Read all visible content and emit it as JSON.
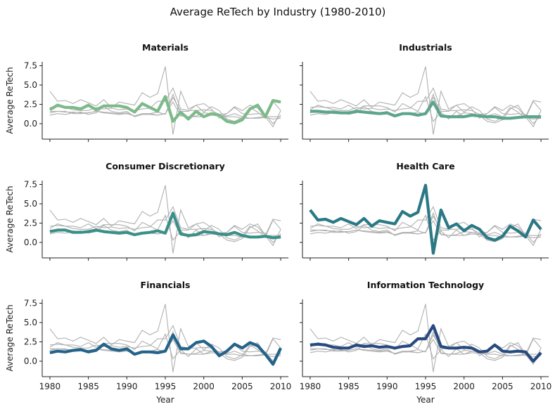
{
  "chart_data": {
    "type": "line",
    "title": "Average ReTech by Industry (1980-2010)",
    "xlabel": "Year",
    "ylabel": "Average ReTech",
    "xlim": [
      1979,
      2011
    ],
    "ylim": [
      -2,
      8
    ],
    "xticks": [
      1980,
      1985,
      1990,
      1995,
      2000,
      2005,
      2010
    ],
    "yticks": [
      0.0,
      2.5,
      5.0,
      7.5
    ],
    "ytick_labels": [
      "0.0",
      "2.5",
      "5.0",
      "7.5"
    ],
    "background_color": "#b0b0b0",
    "x": [
      1980,
      1981,
      1982,
      1983,
      1984,
      1985,
      1986,
      1987,
      1988,
      1989,
      1990,
      1991,
      1992,
      1993,
      1994,
      1995,
      1996,
      1997,
      1998,
      1999,
      2000,
      2001,
      2002,
      2003,
      2004,
      2005,
      2006,
      2007,
      2008,
      2009,
      2010
    ],
    "series": [
      {
        "name": "Materials",
        "color": "#7dba8a",
        "values": [
          1.8,
          2.4,
          2.1,
          2.1,
          1.9,
          2.4,
          1.8,
          2.3,
          2.3,
          2.3,
          2.1,
          1.5,
          2.6,
          2.1,
          1.6,
          3.5,
          0.3,
          1.5,
          0.6,
          1.6,
          0.9,
          1.3,
          1.1,
          0.3,
          0.1,
          0.5,
          1.9,
          2.4,
          0.9,
          3.0,
          2.8
        ]
      },
      {
        "name": "Industrials",
        "color": "#5ba58c",
        "values": [
          1.6,
          1.6,
          1.5,
          1.5,
          1.4,
          1.4,
          1.6,
          1.5,
          1.4,
          1.3,
          1.4,
          1.0,
          1.3,
          1.3,
          1.1,
          1.3,
          2.8,
          1.0,
          0.9,
          0.9,
          0.9,
          1.1,
          1.0,
          0.9,
          0.9,
          0.7,
          0.7,
          0.8,
          0.9,
          0.9,
          0.9
        ]
      },
      {
        "name": "Consumer Discretionary",
        "color": "#3a9089",
        "values": [
          1.4,
          1.6,
          1.6,
          1.3,
          1.3,
          1.4,
          1.6,
          1.4,
          1.3,
          1.2,
          1.3,
          1.0,
          1.2,
          1.3,
          1.5,
          1.2,
          3.8,
          1.1,
          0.9,
          1.0,
          1.4,
          1.3,
          1.1,
          1.0,
          1.3,
          0.9,
          0.7,
          0.7,
          0.8,
          0.6,
          0.7
        ]
      },
      {
        "name": "Health Care",
        "color": "#2a7985",
        "values": [
          4.2,
          2.9,
          3.0,
          2.6,
          3.1,
          2.7,
          2.3,
          3.1,
          2.1,
          2.8,
          2.6,
          2.4,
          4.0,
          3.4,
          3.9,
          7.4,
          -1.4,
          4.2,
          1.9,
          2.4,
          1.5,
          2.2,
          1.7,
          0.6,
          0.3,
          0.8,
          2.1,
          1.5,
          0.7,
          2.9,
          1.7
        ]
      },
      {
        "name": "Financials",
        "color": "#24638a",
        "values": [
          1.1,
          1.3,
          1.2,
          1.4,
          1.5,
          1.2,
          1.4,
          2.2,
          1.6,
          1.4,
          1.6,
          0.9,
          1.2,
          1.2,
          1.1,
          1.3,
          3.4,
          1.6,
          1.6,
          2.4,
          2.6,
          1.9,
          0.7,
          1.3,
          2.2,
          1.7,
          2.4,
          2.0,
          0.9,
          -0.4,
          1.7
        ]
      },
      {
        "name": "Information Technology",
        "color": "#274a7f",
        "values": [
          2.1,
          2.2,
          2.1,
          1.8,
          1.7,
          1.7,
          2.1,
          1.9,
          2.0,
          1.8,
          1.9,
          1.7,
          1.9,
          2.0,
          2.9,
          2.9,
          4.6,
          1.9,
          1.7,
          1.7,
          1.8,
          1.7,
          1.2,
          1.3,
          2.1,
          1.3,
          1.2,
          1.3,
          1.2,
          0.0,
          1.1
        ]
      }
    ]
  }
}
